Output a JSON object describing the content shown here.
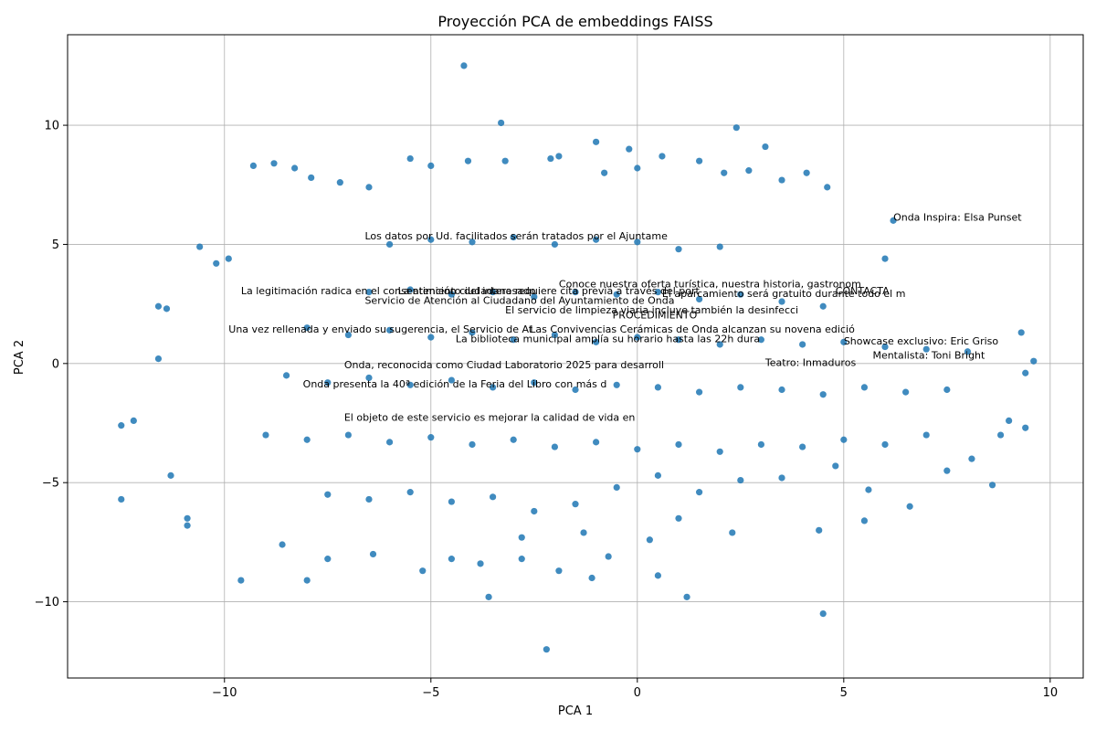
{
  "chart_data": {
    "type": "scatter",
    "title": "Proyección PCA de embeddings FAISS",
    "xlabel": "PCA 1",
    "ylabel": "PCA 2",
    "xlim": [
      -13.8,
      10.8
    ],
    "ylim": [
      -13.2,
      13.8
    ],
    "xticks": [
      -10,
      -5,
      0,
      5,
      10
    ],
    "yticks": [
      -10,
      -5,
      0,
      5,
      10
    ],
    "xtick_labels": [
      "−10",
      "−5",
      "0",
      "5",
      "10"
    ],
    "ytick_labels": [
      "−10",
      "−5",
      "0",
      "5",
      "10"
    ],
    "grid": true,
    "point_color": "#1f77b4",
    "series": [
      {
        "points": [
          [
            -4.2,
            12.5
          ],
          [
            -3.3,
            10.1
          ],
          [
            -1.0,
            9.3
          ],
          [
            -0.2,
            9.0
          ],
          [
            2.4,
            9.9
          ],
          [
            3.1,
            9.1
          ],
          [
            4.1,
            8.0
          ],
          [
            4.6,
            7.4
          ],
          [
            6.2,
            6.0
          ],
          [
            6.0,
            4.4
          ],
          [
            9.6,
            0.1
          ],
          [
            9.4,
            -0.4
          ],
          [
            9.3,
            1.3
          ],
          [
            -12.5,
            -2.6
          ],
          [
            -12.5,
            -5.7
          ],
          [
            -12.2,
            -2.4
          ],
          [
            -11.6,
            2.4
          ],
          [
            -11.4,
            2.3
          ],
          [
            -11.6,
            0.2
          ],
          [
            -11.3,
            -4.7
          ],
          [
            -10.9,
            -6.5
          ],
          [
            -10.9,
            -6.8
          ],
          [
            -10.6,
            4.9
          ],
          [
            -10.2,
            4.2
          ],
          [
            -9.9,
            4.4
          ],
          [
            -9.3,
            8.3
          ],
          [
            -8.8,
            8.4
          ],
          [
            -8.3,
            8.2
          ],
          [
            -8.0,
            -9.1
          ],
          [
            -7.9,
            7.8
          ],
          [
            -7.2,
            7.6
          ],
          [
            -6.5,
            7.4
          ],
          [
            -5.5,
            8.6
          ],
          [
            -5.0,
            8.3
          ],
          [
            -4.1,
            8.5
          ],
          [
            -3.2,
            8.5
          ],
          [
            -2.1,
            8.6
          ],
          [
            -1.9,
            8.7
          ],
          [
            -0.8,
            8.0
          ],
          [
            0.0,
            8.2
          ],
          [
            0.6,
            8.7
          ],
          [
            1.5,
            8.5
          ],
          [
            2.1,
            8.0
          ],
          [
            2.7,
            8.1
          ],
          [
            3.5,
            7.7
          ],
          [
            -3.6,
            -9.8
          ],
          [
            -2.2,
            -12.0
          ],
          [
            -2.8,
            -8.2
          ],
          [
            -1.9,
            -8.7
          ],
          [
            -1.1,
            -9.0
          ],
          [
            -0.7,
            -8.1
          ],
          [
            0.5,
            -8.9
          ],
          [
            1.2,
            -9.8
          ],
          [
            2.3,
            -7.1
          ],
          [
            4.4,
            -7.0
          ],
          [
            4.5,
            -10.5
          ],
          [
            5.5,
            -6.6
          ],
          [
            6.6,
            -6.0
          ],
          [
            7.5,
            -4.5
          ],
          [
            8.1,
            -4.0
          ],
          [
            8.6,
            -5.1
          ],
          [
            8.8,
            -3.0
          ],
          [
            9.0,
            -2.4
          ],
          [
            9.4,
            -2.7
          ],
          [
            -9.6,
            -9.1
          ],
          [
            -8.6,
            -7.6
          ],
          [
            -7.5,
            -8.2
          ],
          [
            -6.4,
            -8.0
          ],
          [
            -5.2,
            -8.7
          ],
          [
            -4.5,
            -8.2
          ],
          [
            -3.8,
            -8.4
          ],
          [
            -2.8,
            -7.3
          ],
          [
            -1.3,
            -7.1
          ],
          [
            0.3,
            -7.4
          ],
          [
            1.0,
            -6.5
          ],
          [
            -6.0,
            5.0
          ],
          [
            -5.0,
            5.2
          ],
          [
            -4.0,
            5.1
          ],
          [
            -3.0,
            5.3
          ],
          [
            -2.0,
            5.0
          ],
          [
            -1.0,
            5.2
          ],
          [
            0.0,
            5.1
          ],
          [
            1.0,
            4.8
          ],
          [
            2.0,
            4.9
          ],
          [
            -6.5,
            3.0
          ],
          [
            -5.5,
            3.1
          ],
          [
            -4.5,
            2.9
          ],
          [
            -3.5,
            3.0
          ],
          [
            -2.5,
            2.8
          ],
          [
            -1.5,
            3.0
          ],
          [
            -0.5,
            2.9
          ],
          [
            0.5,
            3.0
          ],
          [
            1.5,
            2.7
          ],
          [
            2.5,
            2.9
          ],
          [
            3.5,
            2.6
          ],
          [
            4.5,
            2.4
          ],
          [
            -8.0,
            1.5
          ],
          [
            -7.0,
            1.2
          ],
          [
            -6.0,
            1.4
          ],
          [
            -5.0,
            1.1
          ],
          [
            -4.0,
            1.3
          ],
          [
            -3.0,
            1.0
          ],
          [
            -2.0,
            1.2
          ],
          [
            -1.0,
            0.9
          ],
          [
            0.0,
            1.1
          ],
          [
            1.0,
            1.0
          ],
          [
            2.0,
            0.8
          ],
          [
            3.0,
            1.0
          ],
          [
            4.0,
            0.8
          ],
          [
            5.0,
            0.9
          ],
          [
            6.0,
            0.7
          ],
          [
            7.0,
            0.6
          ],
          [
            8.0,
            0.5
          ],
          [
            -8.5,
            -0.5
          ],
          [
            -7.5,
            -0.8
          ],
          [
            -6.5,
            -0.6
          ],
          [
            -5.5,
            -0.9
          ],
          [
            -4.5,
            -0.7
          ],
          [
            -3.5,
            -1.0
          ],
          [
            -2.5,
            -0.8
          ],
          [
            -1.5,
            -1.1
          ],
          [
            -0.5,
            -0.9
          ],
          [
            0.5,
            -1.0
          ],
          [
            1.5,
            -1.2
          ],
          [
            2.5,
            -1.0
          ],
          [
            3.5,
            -1.1
          ],
          [
            4.5,
            -1.3
          ],
          [
            5.5,
            -1.0
          ],
          [
            6.5,
            -1.2
          ],
          [
            7.5,
            -1.1
          ],
          [
            -9.0,
            -3.0
          ],
          [
            -8.0,
            -3.2
          ],
          [
            -7.0,
            -3.0
          ],
          [
            -6.0,
            -3.3
          ],
          [
            -5.0,
            -3.1
          ],
          [
            -4.0,
            -3.4
          ],
          [
            -3.0,
            -3.2
          ],
          [
            -2.0,
            -3.5
          ],
          [
            -1.0,
            -3.3
          ],
          [
            0.0,
            -3.6
          ],
          [
            1.0,
            -3.4
          ],
          [
            2.0,
            -3.7
          ],
          [
            3.0,
            -3.4
          ],
          [
            4.0,
            -3.5
          ],
          [
            5.0,
            -3.2
          ],
          [
            6.0,
            -3.4
          ],
          [
            7.0,
            -3.0
          ],
          [
            -7.5,
            -5.5
          ],
          [
            -6.5,
            -5.7
          ],
          [
            -5.5,
            -5.4
          ],
          [
            -4.5,
            -5.8
          ],
          [
            -3.5,
            -5.6
          ],
          [
            -2.5,
            -6.2
          ],
          [
            -1.5,
            -5.9
          ],
          [
            -0.5,
            -5.2
          ],
          [
            0.5,
            -4.7
          ],
          [
            1.5,
            -5.4
          ],
          [
            2.5,
            -4.9
          ],
          [
            3.5,
            -4.8
          ],
          [
            4.8,
            -4.3
          ],
          [
            5.6,
            -5.3
          ]
        ]
      }
    ],
    "annotations": [
      {
        "text": "Onda Inspira: Elsa Punset",
        "x": 6.2,
        "y": 6.0
      },
      {
        "text": "Los datos por Ud. facilitados serán tratados por el Ajuntame",
        "x": -6.6,
        "y": 5.2
      },
      {
        "text": "Conoce nuestra oferta turística, nuestra historia, gastronom",
        "x": -1.9,
        "y": 3.2
      },
      {
        "text": "La legitimación radica en el consentimiento del interesado",
        "x": -9.6,
        "y": 2.9
      },
      {
        "text": "La atención ciudadana requiere cita previa a través del port",
        "x": -5.8,
        "y": 2.9
      },
      {
        "text": "El aparcamiento será gratuito durante todo el m",
        "x": 0.6,
        "y": 2.8
      },
      {
        "text": "CONTACTA",
        "x": 4.8,
        "y": 2.9
      },
      {
        "text": "Servicio de Atención al Ciudadano del Ayuntamiento de Onda",
        "x": -6.6,
        "y": 2.5
      },
      {
        "text": "El servicio de limpieza viaria incluye también la desinfecci",
        "x": -3.2,
        "y": 2.1
      },
      {
        "text": "PROCEDIMIENTO",
        "x": -0.6,
        "y": 1.9
      },
      {
        "text": "Una vez rellenada y enviado su sugerencia, el Servicio de At",
        "x": -9.9,
        "y": 1.3
      },
      {
        "text": "Las Convivencias Cerámicas de Onda alcanzan su novena edició",
        "x": -2.6,
        "y": 1.3
      },
      {
        "text": "La biblioteca municipal amplía su horario hasta las 22h dura",
        "x": -4.4,
        "y": 0.9
      },
      {
        "text": "Showcase exclusivo: Eric Griso",
        "x": 5.0,
        "y": 0.8
      },
      {
        "text": "Mentalista: Toni Bright",
        "x": 5.7,
        "y": 0.2
      },
      {
        "text": "Teatro: Inmaduros",
        "x": 3.1,
        "y": -0.1
      },
      {
        "text": "Onda, reconocida como Ciudad Laboratorio 2025 para desarroll",
        "x": -7.1,
        "y": -0.2
      },
      {
        "text": "Onda presenta la 40ª edición de la Feria del Libro con más d",
        "x": -8.1,
        "y": -1.0
      },
      {
        "text": "El objeto de este servicio es mejorar la calidad de vida en",
        "x": -7.1,
        "y": -2.4
      }
    ]
  }
}
